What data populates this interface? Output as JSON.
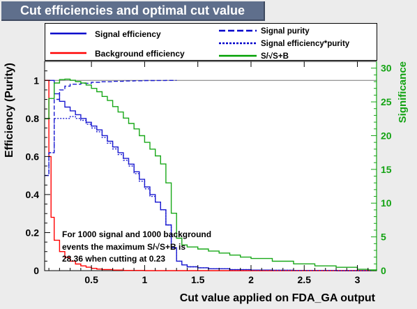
{
  "title": "Cut efficiencies and optimal cut value",
  "chart_data": {
    "type": "line",
    "xlabel": "Cut value applied on FDA_GA output",
    "ylabel": "Efficiency (Purity)",
    "ylabel_right": "Significance",
    "xlim": [
      0.06,
      3.18
    ],
    "ylim": [
      0,
      1.1
    ],
    "ylim_right": [
      0,
      31
    ],
    "x_ticks": [
      "0.5",
      "1",
      "1.5",
      "2",
      "2.5",
      "3"
    ],
    "y_ticks": [
      "0",
      "0.2",
      "0.4",
      "0.6",
      "0.8",
      "1"
    ],
    "y_ticks_right": [
      "0",
      "5",
      "10",
      "15",
      "20",
      "25",
      "30"
    ],
    "x_tick_values": [
      0.5,
      1,
      1.5,
      2,
      2.5,
      3
    ],
    "y_tick_values": [
      0,
      0.2,
      0.4,
      0.6,
      0.8,
      1
    ],
    "y_tick_values_right": [
      0,
      5,
      10,
      15,
      20,
      25,
      30
    ],
    "reference_line_y": 1,
    "legend": [
      {
        "label": "Signal efficiency",
        "color": "#0000cc",
        "style": "solid"
      },
      {
        "label": "Background efficiency",
        "color": "#ff0000",
        "style": "solid"
      },
      {
        "label": "Signal purity",
        "color": "#0000cc",
        "style": "dashed"
      },
      {
        "label": "Signal efficiency*purity",
        "color": "#0000cc",
        "style": "dotted"
      },
      {
        "label": "S/√S+B",
        "color": "#00a000",
        "style": "solid"
      }
    ],
    "series": [
      {
        "name": "Signal efficiency",
        "axis": "left",
        "color": "#1a1ad0",
        "x": [
          0.06,
          0.1,
          0.15,
          0.2,
          0.25,
          0.3,
          0.35,
          0.4,
          0.45,
          0.5,
          0.55,
          0.6,
          0.65,
          0.7,
          0.75,
          0.8,
          0.85,
          0.9,
          0.95,
          1.0,
          1.05,
          1.1,
          1.15,
          1.2,
          1.25,
          1.3,
          1.35,
          1.4,
          1.5,
          1.6,
          1.8,
          2.0,
          2.2,
          2.4,
          2.6,
          2.8,
          3.0,
          3.18
        ],
        "y": [
          1.0,
          1.0,
          0.93,
          0.89,
          0.86,
          0.84,
          0.82,
          0.8,
          0.78,
          0.76,
          0.74,
          0.71,
          0.68,
          0.65,
          0.62,
          0.59,
          0.56,
          0.52,
          0.48,
          0.44,
          0.4,
          0.36,
          0.32,
          0.24,
          0.12,
          0.05,
          0.03,
          0.02,
          0.015,
          0.01,
          0.005,
          0.003,
          0.002,
          0.001,
          0.001,
          0.0,
          0.0,
          0.0
        ]
      },
      {
        "name": "Background efficiency",
        "axis": "left",
        "color": "#ff0000",
        "x": [
          0.06,
          0.08,
          0.1,
          0.12,
          0.15,
          0.2,
          0.25,
          0.3,
          0.35,
          0.4,
          0.45,
          0.5,
          0.55,
          0.6,
          0.7,
          0.8,
          1.0,
          3.18
        ],
        "y": [
          1.0,
          1.0,
          0.6,
          0.28,
          0.16,
          0.1,
          0.07,
          0.05,
          0.035,
          0.025,
          0.018,
          0.012,
          0.008,
          0.006,
          0.003,
          0.001,
          0.0,
          0.0
        ]
      },
      {
        "name": "Signal purity",
        "axis": "left",
        "color": "#1a1ad0",
        "x": [
          0.06,
          0.1,
          0.15,
          0.2,
          0.25,
          0.3,
          0.4,
          0.5,
          0.6,
          0.7,
          0.8,
          0.9,
          1.0,
          1.1,
          1.2,
          1.3
        ],
        "y": [
          0.5,
          0.62,
          0.9,
          0.95,
          0.97,
          0.98,
          0.985,
          0.99,
          0.993,
          0.995,
          0.997,
          0.998,
          0.999,
          0.9995,
          1.0,
          1.0
        ]
      },
      {
        "name": "Signal efficiency*purity",
        "axis": "left",
        "color": "#1a1ad0",
        "x": [
          0.06,
          0.1,
          0.15,
          0.2,
          0.25,
          0.3,
          0.35,
          0.4,
          0.45,
          0.5,
          0.55,
          0.6,
          0.65,
          0.7,
          0.75,
          0.8,
          0.85,
          0.9,
          0.95,
          1.0,
          1.05,
          1.1,
          1.15,
          1.2,
          1.25,
          1.3,
          1.35,
          1.4,
          1.5,
          1.6,
          1.8,
          2.0,
          2.2,
          2.4,
          2.6,
          2.8,
          3.0,
          3.18
        ],
        "y": [
          0.5,
          0.62,
          0.8,
          0.8,
          0.8,
          0.81,
          0.8,
          0.79,
          0.77,
          0.75,
          0.73,
          0.7,
          0.67,
          0.64,
          0.61,
          0.58,
          0.55,
          0.51,
          0.47,
          0.43,
          0.39,
          0.36,
          0.32,
          0.24,
          0.12,
          0.05,
          0.03,
          0.02,
          0.015,
          0.01,
          0.005,
          0.003,
          0.002,
          0.001,
          0.001,
          0.0,
          0.0,
          0.0
        ]
      },
      {
        "name": "S/√S+B",
        "axis": "right",
        "color": "#18a818",
        "x": [
          0.06,
          0.1,
          0.15,
          0.2,
          0.25,
          0.3,
          0.35,
          0.4,
          0.45,
          0.5,
          0.55,
          0.6,
          0.65,
          0.7,
          0.75,
          0.8,
          0.85,
          0.9,
          0.95,
          1.0,
          1.05,
          1.1,
          1.15,
          1.2,
          1.25,
          1.3,
          1.35,
          1.4,
          1.5,
          1.6,
          1.7,
          1.8,
          1.9,
          2.0,
          2.2,
          2.4,
          2.6,
          2.8,
          3.0,
          3.1,
          3.18
        ],
        "y": [
          22.5,
          25.5,
          27.8,
          28.3,
          28.36,
          28.2,
          28.0,
          27.8,
          27.5,
          27.0,
          26.5,
          25.8,
          25.2,
          24.3,
          23.5,
          22.6,
          21.8,
          21.0,
          20.0,
          19.0,
          18.0,
          17.0,
          15.8,
          13.0,
          8.5,
          4.8,
          3.8,
          3.5,
          3.2,
          2.9,
          2.6,
          2.3,
          2.0,
          1.8,
          1.4,
          1.0,
          0.7,
          0.5,
          0.2,
          0.1,
          0.0
        ]
      }
    ],
    "annotation": [
      "For 1000 signal and 1000 background",
      "events the maximum S/√S+B is",
      "28.36 when cutting at  0.23"
    ]
  }
}
